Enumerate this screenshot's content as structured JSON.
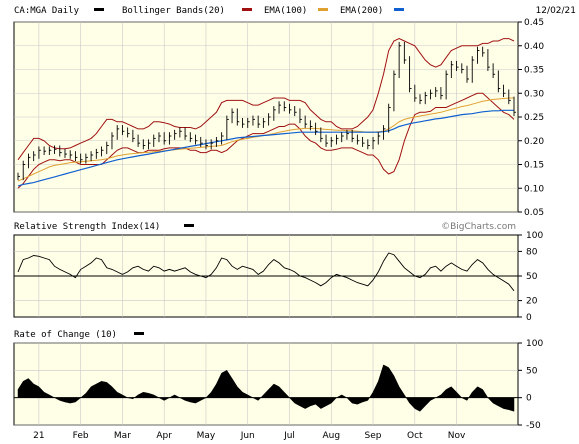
{
  "chart_data": {
    "type": "line",
    "symbol": "CA:MGA",
    "date": "12/02/21",
    "watermark": "©BigCharts.com",
    "months": [
      "21",
      "Feb",
      "Mar",
      "Apr",
      "May",
      "Jun",
      "Jul",
      "Aug",
      "Sep",
      "Oct",
      "Nov"
    ],
    "colors": {
      "bollinger": "#a01010",
      "ema100": "#a01010",
      "ema200": "#e0a030",
      "ema200_line": "#1060d0",
      "price": "#000000",
      "panel_bg": "#ffffe8"
    },
    "price_panel": {
      "title": "CA:MGA Daily",
      "legend": [
        "Bollinger Bands(20)",
        "EMA(100)",
        "EMA(200)"
      ],
      "ylim": [
        0.05,
        0.45
      ],
      "yticks": [
        "0.45",
        "0.40",
        "0.35",
        "0.30",
        "0.25",
        "0.20",
        "0.15",
        "0.10",
        "0.05"
      ],
      "close": [
        0.125,
        0.15,
        0.165,
        0.17,
        0.18,
        0.178,
        0.18,
        0.182,
        0.175,
        0.172,
        0.17,
        0.165,
        0.16,
        0.165,
        0.17,
        0.175,
        0.18,
        0.19,
        0.21,
        0.225,
        0.22,
        0.215,
        0.205,
        0.195,
        0.19,
        0.195,
        0.205,
        0.21,
        0.2,
        0.21,
        0.215,
        0.22,
        0.21,
        0.205,
        0.2,
        0.195,
        0.19,
        0.195,
        0.2,
        0.21,
        0.245,
        0.26,
        0.24,
        0.235,
        0.24,
        0.245,
        0.235,
        0.24,
        0.25,
        0.265,
        0.275,
        0.27,
        0.265,
        0.26,
        0.245,
        0.235,
        0.23,
        0.22,
        0.205,
        0.195,
        0.2,
        0.205,
        0.21,
        0.215,
        0.205,
        0.2,
        0.195,
        0.19,
        0.2,
        0.21,
        0.225,
        0.27,
        0.34,
        0.4,
        0.37,
        0.31,
        0.29,
        0.285,
        0.295,
        0.3,
        0.305,
        0.295,
        0.34,
        0.36,
        0.355,
        0.35,
        0.33,
        0.37,
        0.39,
        0.385,
        0.355,
        0.34,
        0.31,
        0.3,
        0.285,
        0.26
      ],
      "upper_band": [
        0.16,
        0.175,
        0.19,
        0.205,
        0.205,
        0.2,
        0.19,
        0.185,
        0.183,
        0.183,
        0.185,
        0.19,
        0.195,
        0.2,
        0.205,
        0.215,
        0.23,
        0.245,
        0.245,
        0.24,
        0.24,
        0.235,
        0.23,
        0.225,
        0.225,
        0.23,
        0.24,
        0.24,
        0.238,
        0.235,
        0.23,
        0.228,
        0.228,
        0.228,
        0.225,
        0.23,
        0.24,
        0.25,
        0.26,
        0.28,
        0.285,
        0.285,
        0.285,
        0.285,
        0.28,
        0.275,
        0.275,
        0.28,
        0.285,
        0.29,
        0.29,
        0.29,
        0.285,
        0.285,
        0.285,
        0.28,
        0.265,
        0.255,
        0.245,
        0.24,
        0.24,
        0.23,
        0.225,
        0.225,
        0.225,
        0.23,
        0.24,
        0.25,
        0.265,
        0.3,
        0.34,
        0.39,
        0.41,
        0.415,
        0.41,
        0.405,
        0.4,
        0.385,
        0.37,
        0.36,
        0.355,
        0.36,
        0.375,
        0.39,
        0.395,
        0.4,
        0.4,
        0.4,
        0.4,
        0.405,
        0.405,
        0.41,
        0.41,
        0.415,
        0.415,
        0.41
      ],
      "lower_band": [
        0.1,
        0.11,
        0.125,
        0.14,
        0.15,
        0.155,
        0.16,
        0.16,
        0.158,
        0.16,
        0.16,
        0.155,
        0.15,
        0.15,
        0.15,
        0.15,
        0.15,
        0.16,
        0.17,
        0.18,
        0.185,
        0.185,
        0.18,
        0.175,
        0.175,
        0.18,
        0.18,
        0.18,
        0.183,
        0.185,
        0.185,
        0.185,
        0.185,
        0.18,
        0.18,
        0.175,
        0.175,
        0.18,
        0.18,
        0.175,
        0.18,
        0.19,
        0.2,
        0.205,
        0.21,
        0.215,
        0.215,
        0.215,
        0.22,
        0.225,
        0.23,
        0.23,
        0.235,
        0.235,
        0.225,
        0.21,
        0.2,
        0.195,
        0.185,
        0.18,
        0.18,
        0.182,
        0.185,
        0.185,
        0.185,
        0.18,
        0.175,
        0.17,
        0.17,
        0.16,
        0.14,
        0.13,
        0.135,
        0.16,
        0.2,
        0.23,
        0.255,
        0.26,
        0.26,
        0.262,
        0.27,
        0.27,
        0.27,
        0.275,
        0.28,
        0.285,
        0.29,
        0.295,
        0.3,
        0.3,
        0.29,
        0.28,
        0.27,
        0.26,
        0.255,
        0.245
      ],
      "ema100": [
        0.13,
        0.14,
        0.15,
        0.155,
        0.16,
        0.162,
        0.163,
        0.164,
        0.164,
        0.164,
        0.164,
        0.164,
        0.163,
        0.163,
        0.164,
        0.165,
        0.166,
        0.168,
        0.172,
        0.176,
        0.178,
        0.18,
        0.181,
        0.182,
        0.183,
        0.184,
        0.185,
        0.187,
        0.188,
        0.189,
        0.19,
        0.192,
        0.193,
        0.193,
        0.194,
        0.195,
        0.196,
        0.197,
        0.198,
        0.2,
        0.206,
        0.212,
        0.215,
        0.217,
        0.219,
        0.221,
        0.223,
        0.225,
        0.227,
        0.23,
        0.233,
        0.236,
        0.238,
        0.24,
        0.24,
        0.239,
        0.237,
        0.235,
        0.232,
        0.229,
        0.227,
        0.225,
        0.223,
        0.221,
        0.219,
        0.216,
        0.213,
        0.21,
        0.209,
        0.21,
        0.213,
        0.222,
        0.238,
        0.253,
        0.262,
        0.265,
        0.266,
        0.267,
        0.269,
        0.271,
        0.273,
        0.274,
        0.278,
        0.282,
        0.285,
        0.288,
        0.289,
        0.292,
        0.296,
        0.3,
        0.302,
        0.303,
        0.302,
        0.3,
        0.298,
        0.294
      ],
      "ema200": [
        0.115,
        0.12,
        0.125,
        0.13,
        0.135,
        0.14,
        0.145,
        0.148,
        0.15,
        0.152,
        0.154,
        0.155,
        0.156,
        0.157,
        0.158,
        0.159,
        0.16,
        0.162,
        0.165,
        0.168,
        0.17,
        0.172,
        0.173,
        0.174,
        0.175,
        0.176,
        0.177,
        0.178,
        0.179,
        0.18,
        0.181,
        0.182,
        0.183,
        0.184,
        0.185,
        0.186,
        0.187,
        0.188,
        0.189,
        0.19,
        0.194,
        0.198,
        0.201,
        0.203,
        0.205,
        0.207,
        0.209,
        0.211,
        0.213,
        0.215,
        0.218,
        0.22,
        0.222,
        0.224,
        0.225,
        0.226,
        0.226,
        0.226,
        0.225,
        0.224,
        0.223,
        0.222,
        0.222,
        0.221,
        0.221,
        0.22,
        0.219,
        0.218,
        0.218,
        0.219,
        0.22,
        0.225,
        0.232,
        0.24,
        0.245,
        0.248,
        0.25,
        0.252,
        0.254,
        0.256,
        0.258,
        0.26,
        0.263,
        0.266,
        0.269,
        0.272,
        0.274,
        0.277,
        0.28,
        0.283,
        0.285,
        0.287,
        0.288,
        0.289,
        0.29,
        0.29
      ],
      "ema200_blue": [
        0.105,
        0.108,
        0.11,
        0.112,
        0.115,
        0.118,
        0.121,
        0.124,
        0.127,
        0.13,
        0.133,
        0.136,
        0.139,
        0.142,
        0.145,
        0.148,
        0.151,
        0.154,
        0.157,
        0.16,
        0.162,
        0.164,
        0.166,
        0.168,
        0.17,
        0.172,
        0.174,
        0.176,
        0.178,
        0.18,
        0.182,
        0.184,
        0.186,
        0.188,
        0.19,
        0.192,
        0.194,
        0.196,
        0.198,
        0.2,
        0.202,
        0.204,
        0.206,
        0.207,
        0.208,
        0.209,
        0.21,
        0.211,
        0.212,
        0.213,
        0.214,
        0.215,
        0.216,
        0.217,
        0.218,
        0.218,
        0.218,
        0.218,
        0.218,
        0.218,
        0.218,
        0.218,
        0.218,
        0.218,
        0.218,
        0.218,
        0.218,
        0.218,
        0.218,
        0.218,
        0.219,
        0.221,
        0.225,
        0.23,
        0.233,
        0.236,
        0.238,
        0.24,
        0.242,
        0.244,
        0.246,
        0.247,
        0.249,
        0.251,
        0.253,
        0.255,
        0.256,
        0.257,
        0.259,
        0.261,
        0.262,
        0.263,
        0.263,
        0.264,
        0.264,
        0.264
      ]
    },
    "rsi_panel": {
      "title": "Relative Strength Index(14)",
      "ylim": [
        0,
        100
      ],
      "yticks": [
        "100",
        "80",
        "50",
        "20",
        "0"
      ],
      "reference": 50,
      "values": [
        55,
        70,
        72,
        75,
        74,
        72,
        70,
        62,
        58,
        55,
        52,
        48,
        58,
        62,
        66,
        72,
        70,
        60,
        58,
        55,
        52,
        55,
        60,
        62,
        58,
        56,
        62,
        60,
        56,
        58,
        56,
        58,
        60,
        55,
        52,
        50,
        48,
        52,
        60,
        72,
        70,
        62,
        58,
        62,
        60,
        58,
        52,
        56,
        64,
        70,
        66,
        60,
        58,
        55,
        50,
        48,
        45,
        42,
        38,
        42,
        48,
        52,
        50,
        48,
        45,
        42,
        40,
        38,
        45,
        55,
        68,
        78,
        76,
        68,
        60,
        55,
        50,
        48,
        52,
        60,
        62,
        56,
        62,
        66,
        62,
        58,
        56,
        64,
        70,
        66,
        58,
        52,
        48,
        44,
        40,
        32
      ]
    },
    "roc_panel": {
      "title": "Rate of Change (10)",
      "ylim": [
        -50,
        100
      ],
      "yticks": [
        "100",
        "50",
        "0",
        "-50"
      ],
      "values": [
        15,
        30,
        35,
        25,
        20,
        10,
        5,
        0,
        -5,
        -8,
        -10,
        -8,
        0,
        8,
        20,
        25,
        30,
        28,
        20,
        10,
        5,
        0,
        -2,
        5,
        10,
        8,
        5,
        0,
        -5,
        0,
        5,
        0,
        -5,
        -8,
        -10,
        -5,
        0,
        10,
        25,
        45,
        50,
        35,
        20,
        10,
        5,
        0,
        -5,
        5,
        15,
        25,
        20,
        10,
        0,
        -10,
        -15,
        -20,
        -15,
        -12,
        -20,
        -15,
        -10,
        0,
        5,
        0,
        -10,
        -12,
        -8,
        -5,
        10,
        30,
        60,
        55,
        40,
        20,
        5,
        -10,
        -20,
        -25,
        -15,
        -5,
        0,
        5,
        15,
        20,
        10,
        0,
        -5,
        10,
        20,
        15,
        0,
        -10,
        -15,
        -20,
        -22,
        -25
      ]
    }
  }
}
